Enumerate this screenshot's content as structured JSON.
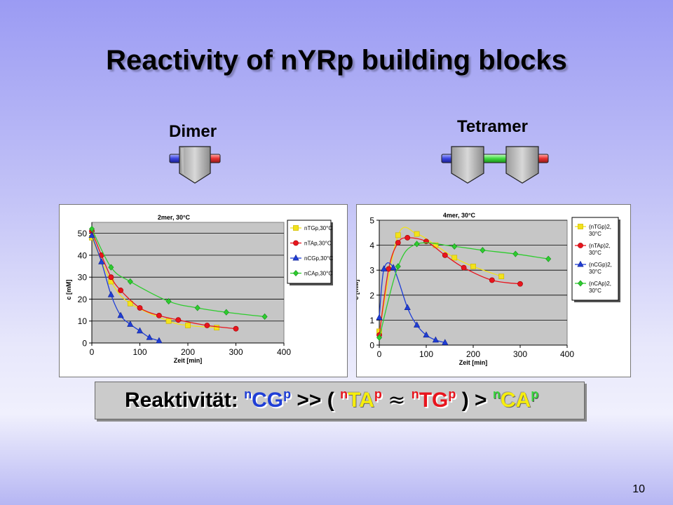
{
  "title": "Reactivity of nYRp building blocks",
  "labels": {
    "dimer": "Dimer",
    "tetramer": "Tetramer"
  },
  "colors": {
    "nTG": "#f2e21a",
    "nTA": "#e8141d",
    "nCG": "#1f3ed6",
    "nCA": "#2ecc2e",
    "plot_bg": "#c6c6c6"
  },
  "banner": {
    "prefix": "Reaktivität: ",
    "sup_n": "n",
    "sup_p": "p",
    "CG": "CG",
    "op1": " >> ( ",
    "TA": "TA",
    "approx": "≈",
    "TG": "TG",
    "op2": " ) > ",
    "CA": "CA"
  },
  "page_number": "10",
  "chart_data": [
    {
      "type": "scatter",
      "title": "2mer, 30°C",
      "xlabel": "Zeit [min]",
      "ylabel": "c [mM]",
      "xlim": [
        0,
        400
      ],
      "ylim": [
        0,
        55
      ],
      "xticks": [
        0,
        100,
        200,
        300,
        400
      ],
      "yticks": [
        0,
        10,
        20,
        30,
        40,
        50
      ],
      "grid": true,
      "legend_position": "right",
      "series": [
        {
          "name": "nTGp,30°C",
          "marker": "square",
          "x": [
            0,
            40,
            80,
            160,
            200,
            260
          ],
          "y": [
            48,
            28,
            18,
            10,
            8,
            7
          ]
        },
        {
          "name": "nTAp,30°C",
          "marker": "circle",
          "x": [
            0,
            20,
            40,
            60,
            100,
            140,
            180,
            240,
            300
          ],
          "y": [
            51,
            40,
            30,
            24,
            16,
            12.5,
            10.5,
            8,
            6.5
          ]
        },
        {
          "name": "nCGp,30°C",
          "marker": "triangle",
          "x": [
            0,
            20,
            40,
            60,
            80,
            100,
            120,
            140
          ],
          "y": [
            49,
            37,
            22,
            12.5,
            8.5,
            5.5,
            2.5,
            1
          ]
        },
        {
          "name": "nCAp,30°C",
          "marker": "diamond",
          "x": [
            0,
            40,
            80,
            160,
            220,
            280,
            360
          ],
          "y": [
            52,
            34.5,
            28,
            19,
            16,
            14,
            12
          ]
        }
      ]
    },
    {
      "type": "scatter",
      "title": "4mer, 30°C",
      "xlabel": "Zeit [min]",
      "ylabel": "c [mM]",
      "xlim": [
        0,
        400
      ],
      "ylim": [
        0,
        5
      ],
      "xticks": [
        0,
        100,
        200,
        300,
        400
      ],
      "yticks": [
        0,
        1,
        2,
        3,
        4,
        5
      ],
      "grid": true,
      "legend_position": "right",
      "series": [
        {
          "name": "(nTGp)2, 30°C",
          "marker": "square",
          "x": [
            0,
            40,
            80,
            120,
            160,
            200,
            260
          ],
          "y": [
            0.55,
            4.4,
            4.45,
            4.0,
            3.5,
            3.15,
            2.75
          ]
        },
        {
          "name": "(nTAp)2, 30°C",
          "marker": "circle",
          "x": [
            0,
            20,
            40,
            60,
            100,
            140,
            180,
            240,
            300
          ],
          "y": [
            0.4,
            3.05,
            4.1,
            4.3,
            4.15,
            3.6,
            3.1,
            2.6,
            2.45
          ]
        },
        {
          "name": "(nCGp)2, 30°C",
          "marker": "triangle",
          "x": [
            0,
            10,
            30,
            60,
            80,
            100,
            120,
            140
          ],
          "y": [
            1.1,
            3.05,
            3.1,
            1.5,
            0.8,
            0.4,
            0.2,
            0.1
          ]
        },
        {
          "name": "(nCAp)2, 30°C",
          "marker": "diamond",
          "x": [
            0,
            40,
            80,
            160,
            220,
            290,
            360
          ],
          "y": [
            0.3,
            3.15,
            4.05,
            3.95,
            3.8,
            3.65,
            3.45
          ]
        }
      ]
    }
  ]
}
